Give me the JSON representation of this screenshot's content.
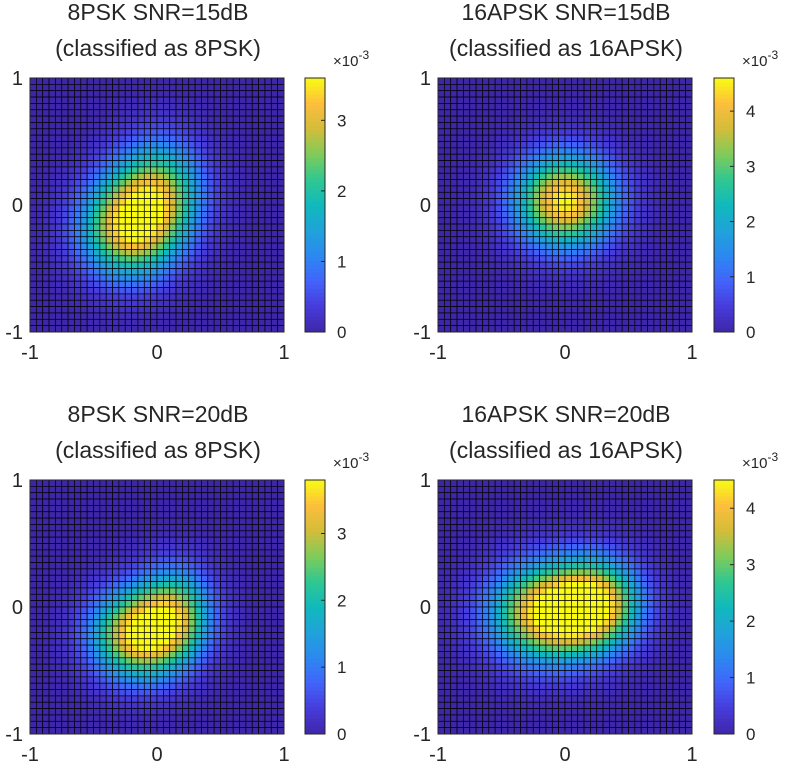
{
  "chart_data": [
    {
      "type": "heatmap",
      "title_line1": "8PSK SNR=15dB",
      "title_line2": "(classified as 8PSK)",
      "grid_size": 40,
      "xlim": [
        -1,
        1
      ],
      "ylim": [
        -1,
        1
      ],
      "x_ticks": [
        "-1",
        "0",
        "1"
      ],
      "y_ticks": [
        "1",
        "0",
        "-1"
      ],
      "colorbar": {
        "min": 0,
        "max": 3.6,
        "ticks": [
          "0",
          "1",
          "2",
          "3"
        ],
        "tick_values": [
          0,
          1,
          2,
          3
        ],
        "exponent_label": "×10",
        "exponent": "-3"
      },
      "peak_value": 3.6,
      "blobs": [
        {
          "cx": -0.22,
          "cy": -0.18,
          "sx": 0.26,
          "sy": 0.27,
          "amp": 0.9
        },
        {
          "cx": 0.02,
          "cy": 0.12,
          "sx": 0.24,
          "sy": 0.28,
          "amp": 0.62
        }
      ]
    },
    {
      "type": "heatmap",
      "title_line1": "16APSK SNR=15dB",
      "title_line2": "(classified as 16APSK)",
      "grid_size": 40,
      "xlim": [
        -1,
        1
      ],
      "ylim": [
        -1,
        1
      ],
      "x_ticks": [
        "-1",
        "0",
        "1"
      ],
      "y_ticks": [
        "1",
        "0",
        "-1"
      ],
      "colorbar": {
        "min": 0,
        "max": 4.6,
        "ticks": [
          "0",
          "1",
          "2",
          "3",
          "4"
        ],
        "tick_values": [
          0,
          1,
          2,
          3,
          4
        ],
        "exponent_label": "×10",
        "exponent": "-3"
      },
      "peak_value": 4.6,
      "blobs": [
        {
          "cx": 0.0,
          "cy": 0.03,
          "sx": 0.27,
          "sy": 0.25,
          "amp": 1.0
        }
      ]
    },
    {
      "type": "heatmap",
      "title_line1": "8PSK SNR=20dB",
      "title_line2": "(classified as 8PSK)",
      "grid_size": 40,
      "xlim": [
        -1,
        1
      ],
      "ylim": [
        -1,
        1
      ],
      "x_ticks": [
        "-1",
        "0",
        "1"
      ],
      "y_ticks": [
        "1",
        "0",
        "-1"
      ],
      "colorbar": {
        "min": 0,
        "max": 3.8,
        "ticks": [
          "0",
          "1",
          "2",
          "3"
        ],
        "tick_values": [
          0,
          1,
          2,
          3
        ],
        "exponent_label": "×10",
        "exponent": "-3"
      },
      "peak_value": 3.8,
      "blobs": [
        {
          "cx": -0.15,
          "cy": -0.22,
          "sx": 0.25,
          "sy": 0.24,
          "amp": 0.95
        },
        {
          "cx": 0.15,
          "cy": -0.05,
          "sx": 0.2,
          "sy": 0.25,
          "amp": 0.62
        }
      ]
    },
    {
      "type": "heatmap",
      "title_line1": "16APSK SNR=20dB",
      "title_line2": "(classified as 16APSK)",
      "grid_size": 40,
      "xlim": [
        -1,
        1
      ],
      "ylim": [
        -1,
        1
      ],
      "x_ticks": [
        "-1",
        "0",
        "1"
      ],
      "y_ticks": [
        "1",
        "0",
        "-1"
      ],
      "colorbar": {
        "min": 0,
        "max": 4.5,
        "ticks": [
          "0",
          "1",
          "2",
          "3",
          "4"
        ],
        "tick_values": [
          0,
          1,
          2,
          3,
          4
        ],
        "exponent_label": "×10",
        "exponent": "-3"
      },
      "peak_value": 4.5,
      "blobs": [
        {
          "cx": -0.15,
          "cy": -0.05,
          "sx": 0.3,
          "sy": 0.26,
          "amp": 0.97
        },
        {
          "cx": 0.25,
          "cy": 0.02,
          "sx": 0.24,
          "sy": 0.24,
          "amp": 0.85
        }
      ]
    }
  ]
}
